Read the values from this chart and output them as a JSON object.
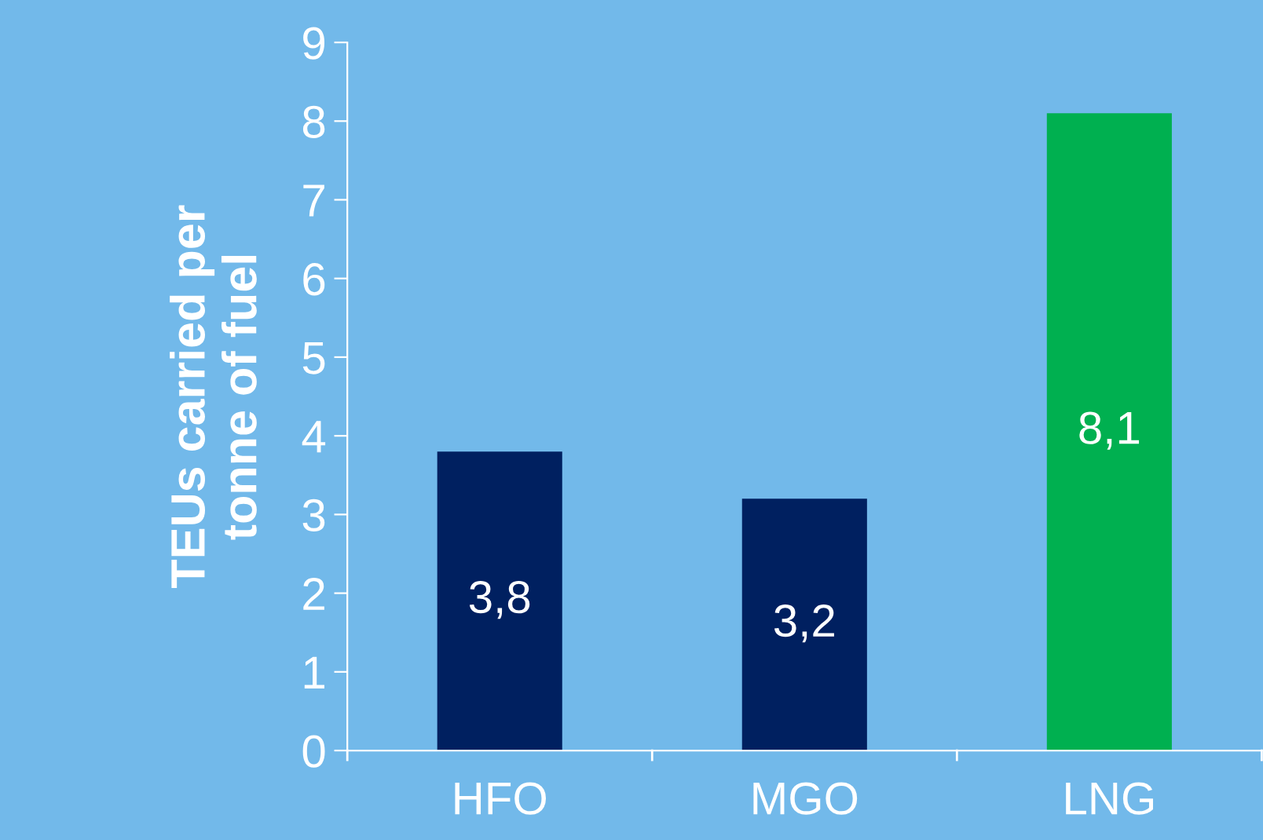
{
  "chart_data": {
    "type": "bar",
    "ylabel": "TEUs carried per\ntonne of fuel",
    "categories": [
      "HFO",
      "MGO",
      "LNG"
    ],
    "values": [
      3.8,
      3.2,
      8.1
    ],
    "colors": [
      "#002060",
      "#002060",
      "#00b050"
    ],
    "value_labels": [
      "3,8",
      "3,2",
      "8,1"
    ],
    "ylim": [
      0,
      9
    ],
    "yticks": [
      0,
      1,
      2,
      3,
      4,
      5,
      6,
      7,
      8,
      9
    ],
    "grid": false,
    "legend": false
  }
}
